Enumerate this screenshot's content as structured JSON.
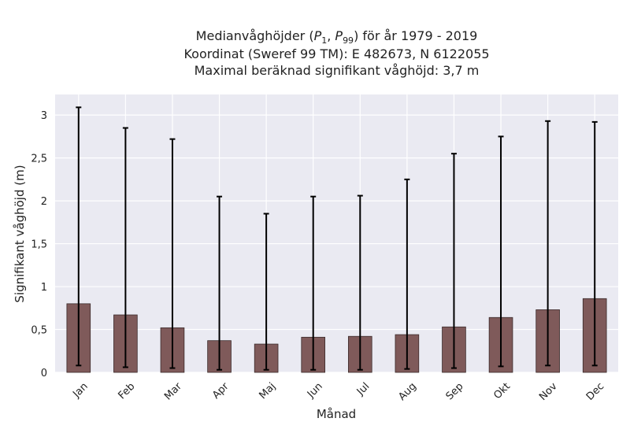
{
  "chart_data": {
    "type": "bar",
    "title_lines": [
      "Medianvåghöjder (P1, P99) för år 1979 - 2019",
      "Koordinat (Sweref 99 TM): E 482673, N 6122055",
      "Maximal beräknad signifikant våghöjd: 3,7 m"
    ],
    "xlabel": "Månad",
    "ylabel": "Signifikant våghöjd (m)",
    "categories": [
      "Jan",
      "Feb",
      "Mar",
      "Apr",
      "Maj",
      "Jun",
      "Jul",
      "Aug",
      "Sep",
      "Okt",
      "Nov",
      "Dec"
    ],
    "series": [
      {
        "values": [
          0.8,
          0.67,
          0.52,
          0.37,
          0.33,
          0.41,
          0.42,
          0.44,
          0.53,
          0.64,
          0.73,
          0.86
        ],
        "p1": [
          0.08,
          0.06,
          0.05,
          0.03,
          0.03,
          0.03,
          0.03,
          0.04,
          0.05,
          0.07,
          0.08,
          0.08
        ],
        "p99": [
          3.09,
          2.85,
          2.72,
          2.05,
          1.85,
          2.05,
          2.06,
          2.25,
          2.55,
          2.75,
          2.93,
          2.92
        ]
      }
    ],
    "yticks": [
      0,
      0.5,
      1,
      1.5,
      2,
      2.5,
      3
    ],
    "ytick_labels": [
      "0",
      "0,5",
      "1",
      "1,5",
      "2",
      "2,5",
      "3"
    ],
    "ylim": [
      0,
      3.24
    ],
    "grid": true,
    "bar_color": "#7f5a5a",
    "background_color": "#eaeaf2"
  }
}
